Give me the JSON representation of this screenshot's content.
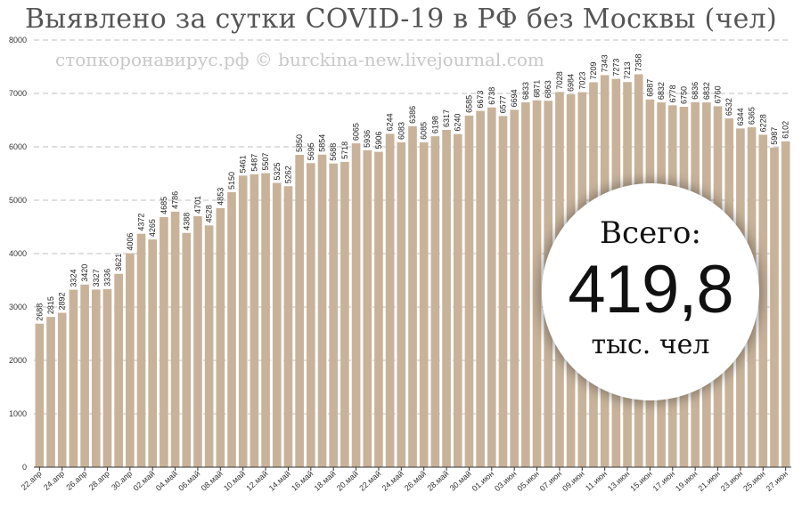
{
  "title": "Выявлено за сутки COVID-19 в РФ без Москвы (чел)",
  "watermark": "стопкоронавирус.рф © burckina-new.livejournal.com",
  "total": {
    "label": "Всего:",
    "value": "419,8",
    "unit": "тыс. чел"
  },
  "colors": {
    "bar": "#c8b39a",
    "grid": "#bfbfbf"
  },
  "chart_data": {
    "type": "bar",
    "title": "Выявлено за сутки COVID-19 в РФ без Москвы (чел)",
    "xlabel": "",
    "ylabel": "",
    "ylim": [
      0,
      8000
    ],
    "yticks": [
      0,
      1000,
      2000,
      3000,
      4000,
      5000,
      6000,
      7000,
      8000
    ],
    "grid": true,
    "categories": [
      "22.апр",
      "23.апр",
      "24.апр",
      "25.апр",
      "26.апр",
      "27.апр",
      "28.апр",
      "29.апр",
      "30.апр",
      "01.май",
      "02.май",
      "03.май",
      "04.май",
      "05.май",
      "06.май",
      "07.май",
      "08.май",
      "09.май",
      "10.май",
      "11.май",
      "12.май",
      "13.май",
      "14.май",
      "15.май",
      "16.май",
      "17.май",
      "18.май",
      "19.май",
      "20.май",
      "21.май",
      "22.май",
      "23.май",
      "24.май",
      "25.май",
      "26.май",
      "27.май",
      "28.май",
      "29.май",
      "30.май",
      "31.май",
      "01.июн",
      "02.июн",
      "03.июн",
      "04.июн",
      "05.июн",
      "06.июн",
      "07.июн",
      "08.июн",
      "09.июн",
      "10.июн",
      "11.июн",
      "12.июн",
      "13.июн",
      "14.июн",
      "15.июн",
      "16.июн",
      "17.июн",
      "18.июн",
      "19.июн",
      "20.июн",
      "21.июн",
      "22.июн",
      "23.июн",
      "24.июн",
      "25.июн",
      "26.июн",
      "27.июн"
    ],
    "tick_labels": [
      "22.апр",
      "24.апр",
      "26.апр",
      "28.апр",
      "30.апр",
      "02.май",
      "04.май",
      "06.май",
      "08.май",
      "10.май",
      "12.май",
      "14.май",
      "16.май",
      "18.май",
      "20.май",
      "22.май",
      "24.май",
      "26.май",
      "28.май",
      "30.май",
      "01.июн",
      "03.июн",
      "05.июн",
      "07.июн",
      "09.июн",
      "11.июн",
      "13.июн",
      "15.июн",
      "17.июн",
      "19.июн",
      "21.июн",
      "23.июн",
      "25.июн",
      "27.июн"
    ],
    "values": [
      2688,
      2815,
      2892,
      3324,
      3420,
      3327,
      3336,
      3621,
      4006,
      4372,
      4265,
      4685,
      4786,
      4388,
      4701,
      4528,
      4853,
      5150,
      5461,
      5487,
      5507,
      5325,
      5262,
      5850,
      5695,
      5854,
      5688,
      5718,
      6065,
      5936,
      5906,
      6244,
      6083,
      6386,
      6085,
      6198,
      6317,
      6240,
      6585,
      6673,
      6738,
      6577,
      6694,
      6833,
      6871,
      6863,
      7028,
      6984,
      7023,
      7209,
      7343,
      7273,
      7213,
      7358,
      6887,
      6832,
      6778,
      6750,
      6836,
      6832,
      6760,
      6532,
      6344,
      6365,
      6228,
      5987,
      6102
    ]
  }
}
